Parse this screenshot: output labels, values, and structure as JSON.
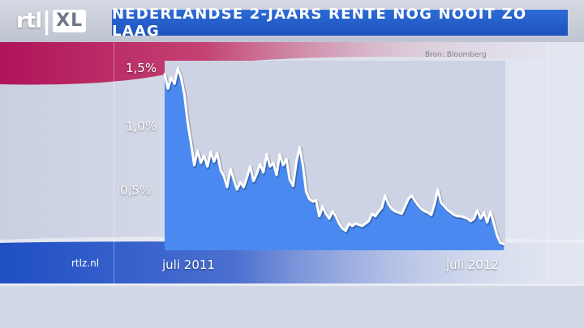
{
  "brand": {
    "logo_main": "rtl",
    "logo_sep": "|",
    "logo_sub": "XL",
    "site": "rtlz.nl"
  },
  "colors": {
    "title_bg": "#2563cc",
    "area_fill": "#4a8af0",
    "line": "#ffffff",
    "plot_bg": "#cdd3e4"
  },
  "chart_data": {
    "type": "area",
    "title": "NEDERLANDSE 2-JAARS RENTE NOG NOOIT ZO LAAG",
    "source": "Bron: Bloomberg",
    "xlabel": "",
    "ylabel": "",
    "x_ticks": [
      "juli 2011",
      "juli 2012"
    ],
    "y_ticks": [
      "1,5%",
      "1,0%",
      "0,5%"
    ],
    "ylim": [
      0.0,
      1.5
    ],
    "grid": false,
    "series": [
      {
        "values": [
          1.45,
          1.33,
          1.42,
          1.37,
          1.5,
          1.42,
          1.28,
          1.05,
          0.88,
          0.7,
          0.82,
          0.72,
          0.78,
          0.69,
          0.81,
          0.73,
          0.8,
          0.66,
          0.61,
          0.52,
          0.67,
          0.58,
          0.5,
          0.56,
          0.52,
          0.6,
          0.69,
          0.57,
          0.63,
          0.71,
          0.64,
          0.79,
          0.69,
          0.72,
          0.62,
          0.79,
          0.7,
          0.75,
          0.58,
          0.53,
          0.72,
          0.85,
          0.7,
          0.48,
          0.42,
          0.4,
          0.41,
          0.28,
          0.36,
          0.3,
          0.26,
          0.32,
          0.28,
          0.22,
          0.18,
          0.16,
          0.22,
          0.2,
          0.22,
          0.21,
          0.2,
          0.22,
          0.24,
          0.3,
          0.28,
          0.32,
          0.35,
          0.45,
          0.38,
          0.34,
          0.32,
          0.31,
          0.3,
          0.36,
          0.42,
          0.45,
          0.41,
          0.37,
          0.34,
          0.32,
          0.31,
          0.29,
          0.38,
          0.5,
          0.39,
          0.36,
          0.33,
          0.31,
          0.29,
          0.28,
          0.28,
          0.27,
          0.26,
          0.24,
          0.26,
          0.33,
          0.26,
          0.31,
          0.23,
          0.32,
          0.22,
          0.12,
          0.06,
          0.05
        ]
      }
    ]
  }
}
